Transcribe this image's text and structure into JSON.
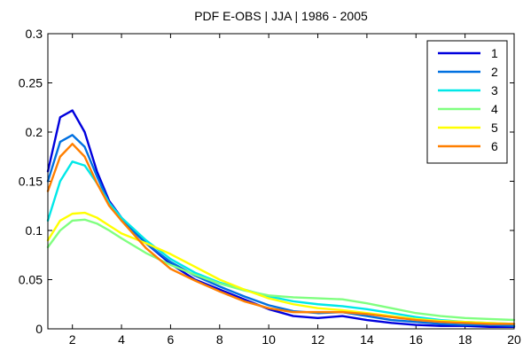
{
  "chart_data": {
    "type": "line",
    "title": "PDF E-OBS | JJA | 1986 - 2005",
    "xlabel": "",
    "ylabel": "",
    "xlim": [
      1,
      20
    ],
    "ylim": [
      0,
      0.3
    ],
    "xticks": [
      2,
      4,
      6,
      8,
      10,
      12,
      14,
      16,
      18,
      20
    ],
    "xtick_labels": [
      "2",
      "4",
      "6",
      "8",
      "10",
      "12",
      "14",
      "16",
      "18",
      "20"
    ],
    "yticks": [
      0,
      0.05,
      0.1,
      0.15,
      0.2,
      0.25,
      0.3
    ],
    "ytick_labels": [
      "0",
      "0.05",
      "0.1",
      "0.15",
      "0.2",
      "0.25",
      "0.3"
    ],
    "grid": false,
    "legend_position": "top-right",
    "series": [
      {
        "name": "1",
        "color": "#0000dd",
        "x": [
          1,
          1.5,
          2,
          2.5,
          3,
          3.5,
          4,
          5,
          6,
          7,
          8,
          9,
          10,
          11,
          12,
          13,
          14,
          15,
          16,
          17,
          18,
          19,
          20
        ],
        "y": [
          0.16,
          0.215,
          0.222,
          0.2,
          0.16,
          0.13,
          0.113,
          0.087,
          0.066,
          0.05,
          0.04,
          0.03,
          0.02,
          0.013,
          0.011,
          0.013,
          0.009,
          0.006,
          0.004,
          0.003,
          0.003,
          0.002,
          0.002
        ]
      },
      {
        "name": "2",
        "color": "#0070e0",
        "x": [
          1,
          1.5,
          2,
          2.5,
          3,
          3.5,
          4,
          5,
          6,
          7,
          8,
          9,
          10,
          11,
          12,
          13,
          14,
          15,
          16,
          17,
          18,
          19,
          20
        ],
        "y": [
          0.15,
          0.19,
          0.197,
          0.185,
          0.155,
          0.128,
          0.11,
          0.087,
          0.068,
          0.054,
          0.043,
          0.033,
          0.024,
          0.018,
          0.016,
          0.017,
          0.013,
          0.009,
          0.007,
          0.005,
          0.004,
          0.004,
          0.003
        ]
      },
      {
        "name": "3",
        "color": "#00e8e8",
        "x": [
          1,
          1.5,
          2,
          2.5,
          3,
          3.5,
          4,
          5,
          6,
          7,
          8,
          9,
          10,
          11,
          12,
          13,
          14,
          15,
          16,
          17,
          18,
          19,
          20
        ],
        "y": [
          0.11,
          0.15,
          0.17,
          0.166,
          0.148,
          0.128,
          0.113,
          0.09,
          0.071,
          0.057,
          0.047,
          0.04,
          0.033,
          0.028,
          0.025,
          0.023,
          0.02,
          0.016,
          0.012,
          0.009,
          0.007,
          0.006,
          0.005
        ]
      },
      {
        "name": "4",
        "color": "#80ff80",
        "x": [
          1,
          1.5,
          2,
          2.5,
          3,
          3.5,
          4,
          5,
          6,
          7,
          8,
          9,
          10,
          11,
          12,
          13,
          14,
          15,
          16,
          17,
          18,
          19,
          20
        ],
        "y": [
          0.083,
          0.1,
          0.11,
          0.111,
          0.107,
          0.1,
          0.092,
          0.077,
          0.065,
          0.055,
          0.046,
          0.039,
          0.034,
          0.032,
          0.031,
          0.03,
          0.026,
          0.021,
          0.016,
          0.013,
          0.011,
          0.01,
          0.009
        ]
      },
      {
        "name": "5",
        "color": "#ffff00",
        "x": [
          1,
          1.5,
          2,
          2.5,
          3,
          3.5,
          4,
          5,
          6,
          7,
          8,
          9,
          10,
          11,
          12,
          13,
          14,
          15,
          16,
          17,
          18,
          19,
          20
        ],
        "y": [
          0.09,
          0.11,
          0.117,
          0.118,
          0.113,
          0.105,
          0.097,
          0.087,
          0.076,
          0.063,
          0.05,
          0.04,
          0.031,
          0.025,
          0.021,
          0.019,
          0.016,
          0.013,
          0.01,
          0.008,
          0.007,
          0.006,
          0.005
        ]
      },
      {
        "name": "6",
        "color": "#ff7f00",
        "x": [
          1,
          1.5,
          2,
          2.5,
          3,
          3.5,
          4,
          5,
          6,
          7,
          8,
          9,
          10,
          11,
          12,
          13,
          14,
          15,
          16,
          17,
          18,
          19,
          20
        ],
        "y": [
          0.14,
          0.175,
          0.188,
          0.175,
          0.148,
          0.125,
          0.11,
          0.082,
          0.061,
          0.049,
          0.038,
          0.028,
          0.021,
          0.017,
          0.017,
          0.017,
          0.015,
          0.012,
          0.009,
          0.007,
          0.006,
          0.005,
          0.005
        ]
      }
    ]
  }
}
